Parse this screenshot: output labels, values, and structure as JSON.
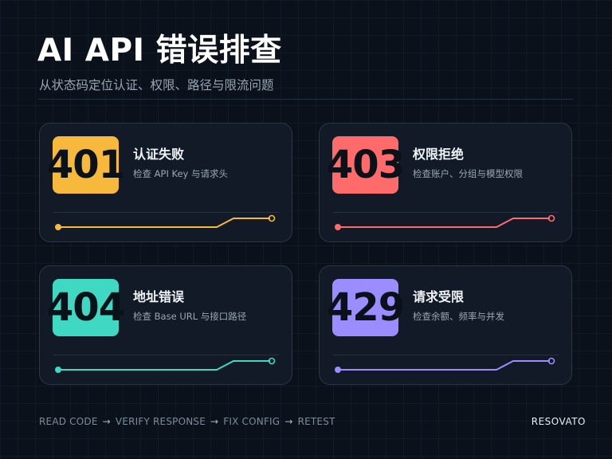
{
  "header": {
    "title": "AI API 错误排查",
    "subtitle": "从状态码定位认证、权限、路径与限流问题"
  },
  "cards": [
    {
      "code": "401",
      "title": "认证失败",
      "desc": "检查 API Key 与请求头",
      "color": "#f6b93b"
    },
    {
      "code": "403",
      "title": "权限拒绝",
      "desc": "检查账户、分组与模型权限",
      "color": "#ff6b6b"
    },
    {
      "code": "404",
      "title": "地址错误",
      "desc": "检查 Base URL 与接口路径",
      "color": "#3fd8c2"
    },
    {
      "code": "429",
      "title": "请求受限",
      "desc": "检查余额、频率与并发",
      "color": "#9b8cff"
    }
  ],
  "footer": {
    "steps": [
      "READ CODE",
      "VERIFY RESPONSE",
      "FIX CONFIG",
      "RETEST"
    ],
    "arrow": "→",
    "brand": "RESOVATO"
  }
}
